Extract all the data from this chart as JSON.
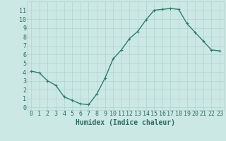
{
  "x": [
    0,
    1,
    2,
    3,
    4,
    5,
    6,
    7,
    8,
    9,
    10,
    11,
    12,
    13,
    14,
    15,
    16,
    17,
    18,
    19,
    20,
    21,
    22,
    23
  ],
  "y": [
    4.1,
    3.9,
    3.0,
    2.5,
    1.2,
    0.8,
    0.4,
    0.3,
    1.5,
    3.3,
    5.5,
    6.5,
    7.8,
    8.6,
    9.9,
    11.0,
    11.1,
    11.2,
    11.1,
    9.5,
    8.5,
    7.5,
    6.5,
    6.4
  ],
  "line_color": "#2d7d6e",
  "marker": "+",
  "marker_color": "#2d7d6e",
  "bg_color": "#cce8e4",
  "grid_color": "#aed4cf",
  "xlabel": "Humidex (Indice chaleur)",
  "xlim": [
    -0.5,
    23.5
  ],
  "ylim": [
    -0.3,
    12
  ],
  "yticks": [
    0,
    1,
    2,
    3,
    4,
    5,
    6,
    7,
    8,
    9,
    10,
    11
  ],
  "xticks": [
    0,
    1,
    2,
    3,
    4,
    5,
    6,
    7,
    8,
    9,
    10,
    11,
    12,
    13,
    14,
    15,
    16,
    17,
    18,
    19,
    20,
    21,
    22,
    23
  ],
  "xlabel_fontsize": 7,
  "tick_fontsize": 6,
  "label_color": "#2d6b5e",
  "linewidth": 1.0,
  "markersize": 3
}
